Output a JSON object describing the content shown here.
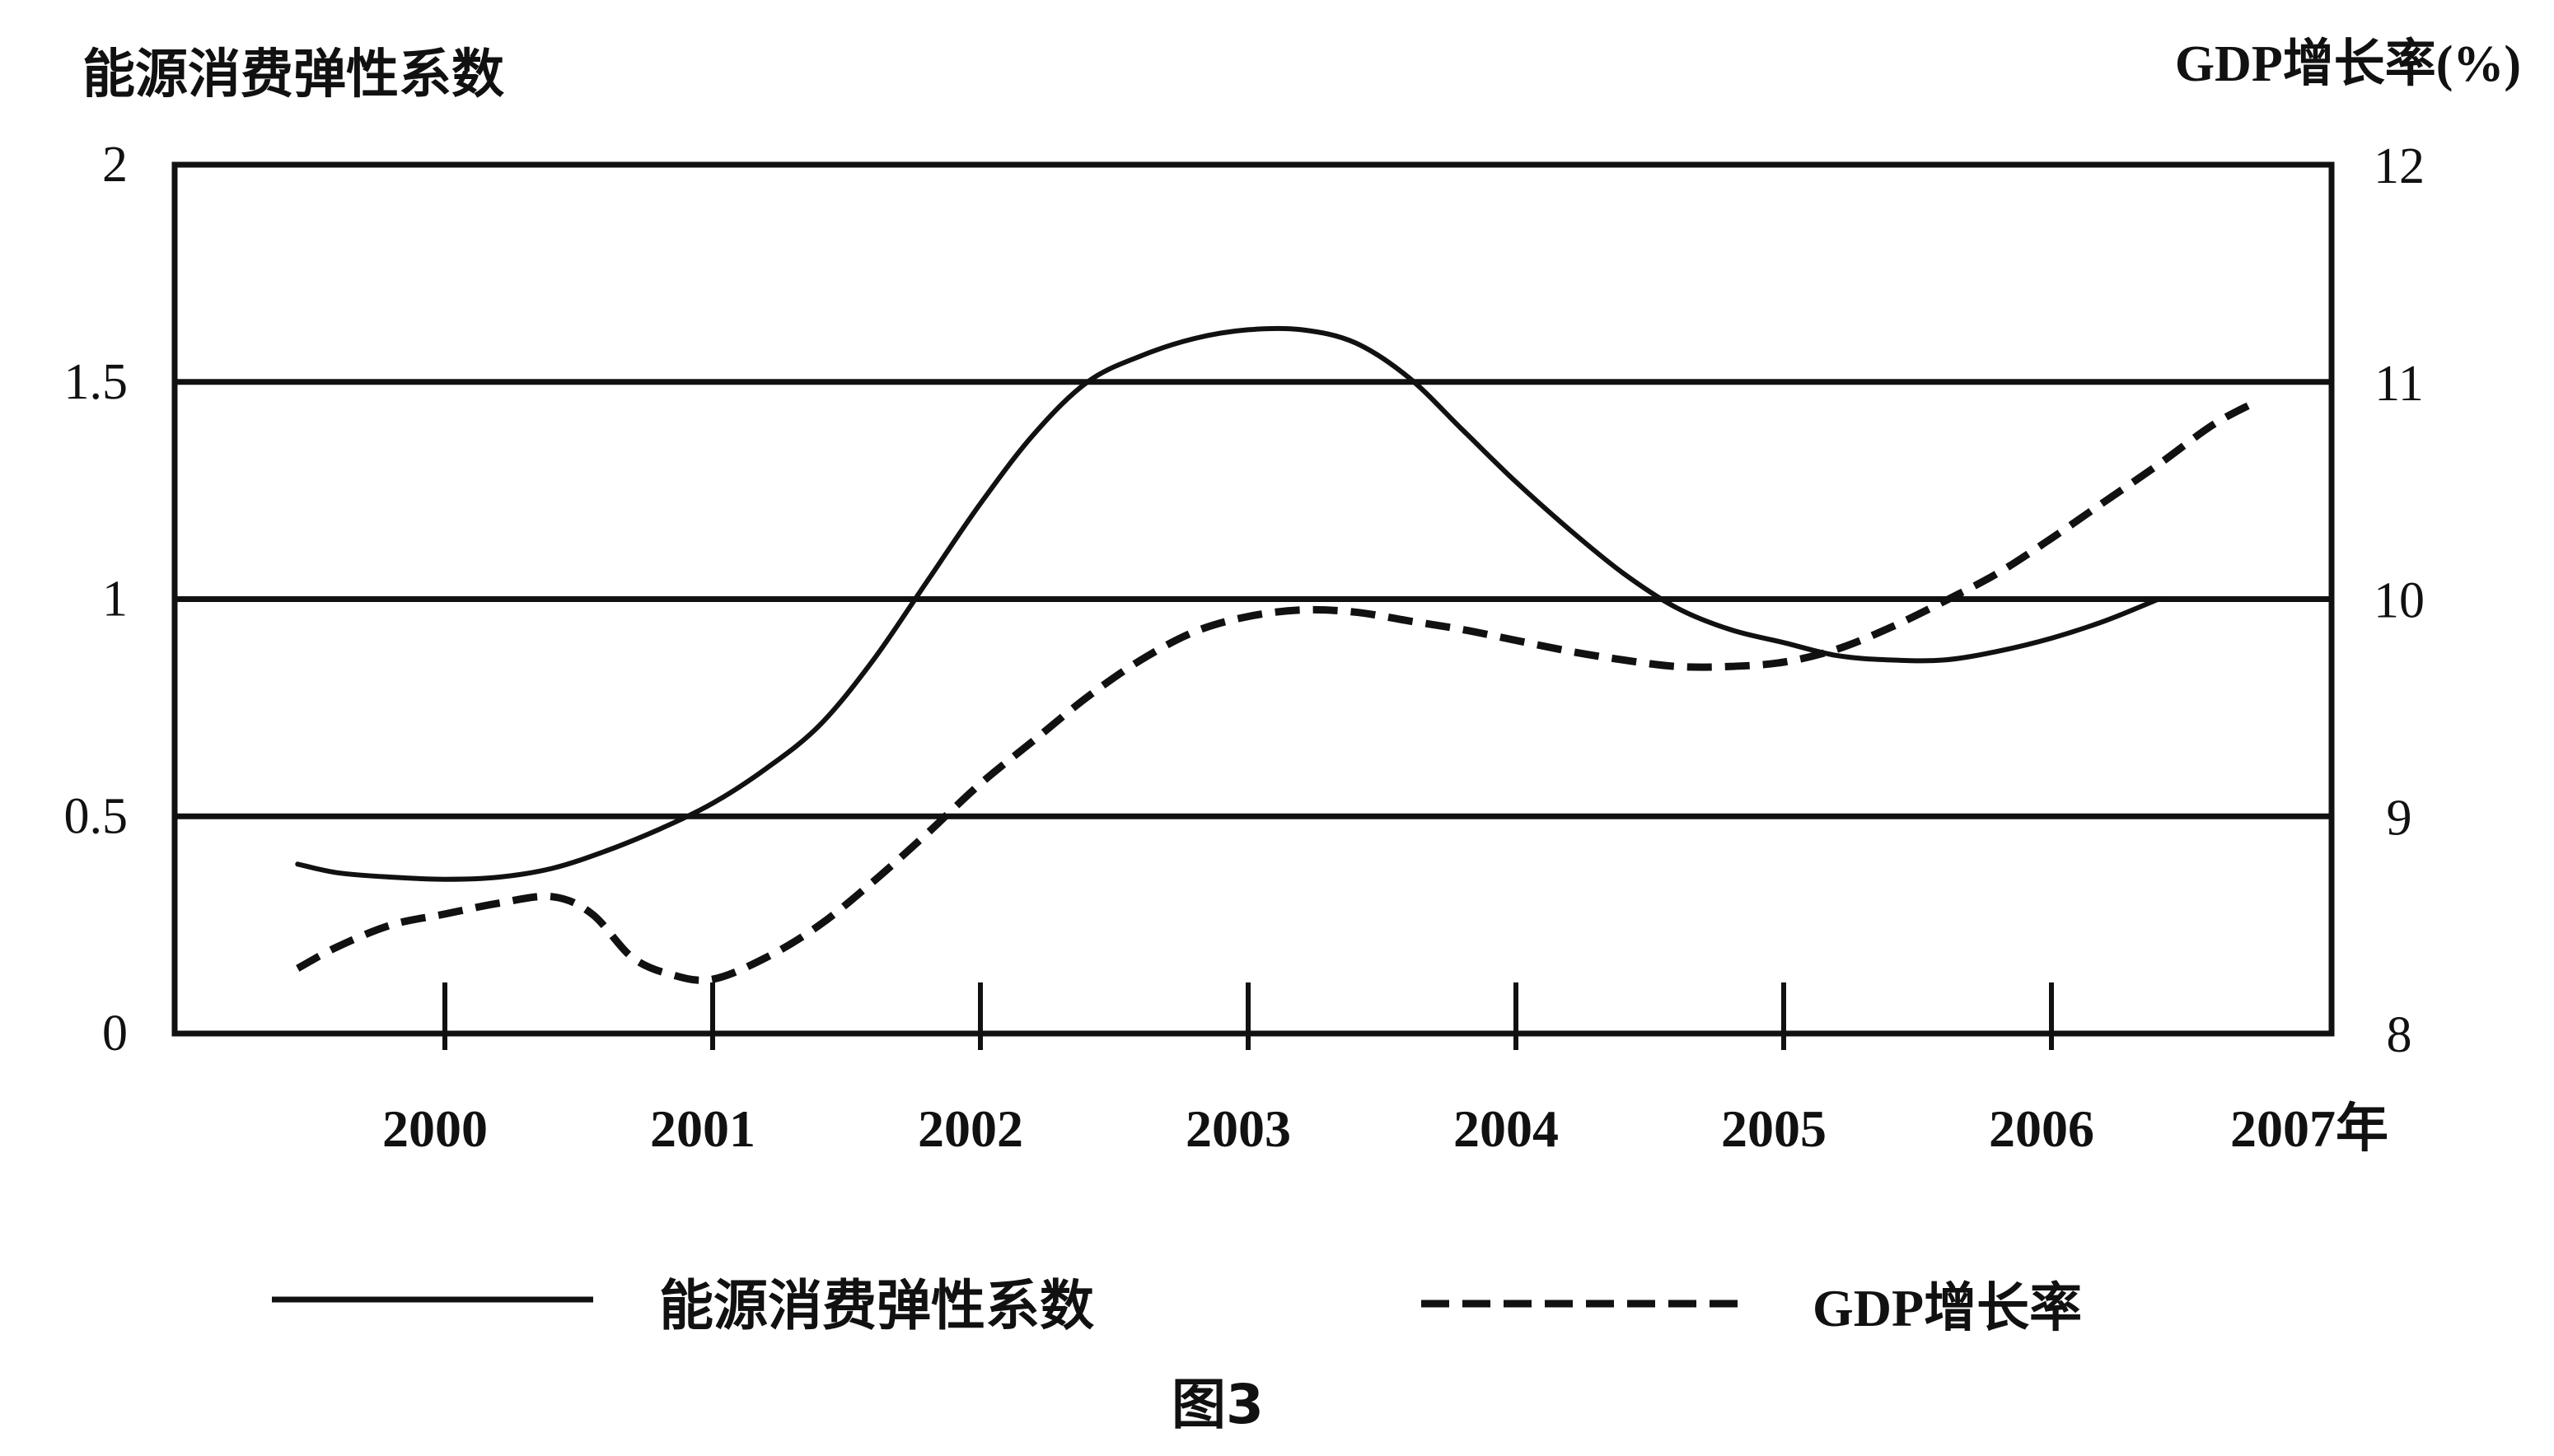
{
  "chart_data": {
    "type": "line",
    "y_left_label": "能源消费弹性系数",
    "y_right_label": "GDP增长率(%)",
    "x_ticks": [
      "2000",
      "2001",
      "2002",
      "2003",
      "2004",
      "2005",
      "2006",
      "2007年"
    ],
    "y_left_ticks": [
      "0",
      "0.5",
      "1",
      "1.5",
      "2"
    ],
    "y_right_ticks": [
      "8",
      "9",
      "10",
      "11",
      "12"
    ],
    "y_left_range": [
      0,
      2
    ],
    "y_right_range": [
      8,
      12
    ],
    "gridlines_at": [
      0.5,
      1,
      1.5
    ],
    "series": [
      {
        "name": "能源消费弹性系数",
        "axis": "left",
        "style": "solid",
        "points": [
          [
            1999.45,
            0.39
          ],
          [
            1999.6,
            0.37
          ],
          [
            1999.8,
            0.36
          ],
          [
            2000.0,
            0.355
          ],
          [
            2000.2,
            0.36
          ],
          [
            2000.4,
            0.38
          ],
          [
            2000.6,
            0.42
          ],
          [
            2000.8,
            0.47
          ],
          [
            2001.0,
            0.53
          ],
          [
            2001.2,
            0.61
          ],
          [
            2001.4,
            0.71
          ],
          [
            2001.6,
            0.86
          ],
          [
            2001.8,
            1.04
          ],
          [
            2002.0,
            1.22
          ],
          [
            2002.2,
            1.38
          ],
          [
            2002.4,
            1.5
          ],
          [
            2002.6,
            1.56
          ],
          [
            2002.8,
            1.6
          ],
          [
            2003.0,
            1.62
          ],
          [
            2003.2,
            1.62
          ],
          [
            2003.4,
            1.59
          ],
          [
            2003.6,
            1.51
          ],
          [
            2003.8,
            1.39
          ],
          [
            2004.0,
            1.27
          ],
          [
            2004.2,
            1.16
          ],
          [
            2004.4,
            1.06
          ],
          [
            2004.6,
            0.98
          ],
          [
            2004.8,
            0.93
          ],
          [
            2005.0,
            0.9
          ],
          [
            2005.2,
            0.87
          ],
          [
            2005.4,
            0.86
          ],
          [
            2005.6,
            0.86
          ],
          [
            2005.8,
            0.88
          ],
          [
            2006.0,
            0.91
          ],
          [
            2006.2,
            0.95
          ],
          [
            2006.4,
            1.0
          ]
        ]
      },
      {
        "name": "GDP增长率",
        "axis": "right",
        "style": "dashed",
        "points": [
          [
            1999.45,
            8.3
          ],
          [
            1999.6,
            8.4
          ],
          [
            1999.8,
            8.5
          ],
          [
            2000.0,
            8.55
          ],
          [
            2000.2,
            8.6
          ],
          [
            2000.4,
            8.63
          ],
          [
            2000.55,
            8.55
          ],
          [
            2000.7,
            8.35
          ],
          [
            2000.85,
            8.27
          ],
          [
            2001.0,
            8.25
          ],
          [
            2001.2,
            8.35
          ],
          [
            2001.4,
            8.5
          ],
          [
            2001.6,
            8.7
          ],
          [
            2001.8,
            8.92
          ],
          [
            2002.0,
            9.15
          ],
          [
            2002.2,
            9.35
          ],
          [
            2002.4,
            9.55
          ],
          [
            2002.6,
            9.72
          ],
          [
            2002.8,
            9.85
          ],
          [
            2003.0,
            9.92
          ],
          [
            2003.2,
            9.95
          ],
          [
            2003.4,
            9.94
          ],
          [
            2003.6,
            9.9
          ],
          [
            2003.8,
            9.86
          ],
          [
            2004.0,
            9.81
          ],
          [
            2004.2,
            9.76
          ],
          [
            2004.4,
            9.72
          ],
          [
            2004.6,
            9.69
          ],
          [
            2004.8,
            9.69
          ],
          [
            2005.0,
            9.71
          ],
          [
            2005.2,
            9.77
          ],
          [
            2005.4,
            9.87
          ],
          [
            2005.6,
            9.99
          ],
          [
            2005.8,
            10.12
          ],
          [
            2006.0,
            10.28
          ],
          [
            2006.2,
            10.45
          ],
          [
            2006.4,
            10.62
          ],
          [
            2006.6,
            10.8
          ],
          [
            2006.75,
            10.9
          ]
        ]
      }
    ]
  },
  "figure_caption": "图3"
}
